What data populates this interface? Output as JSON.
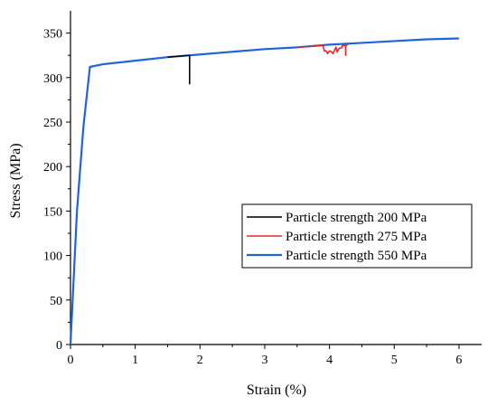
{
  "chart_data": {
    "type": "line",
    "xlabel": "Strain (%)",
    "ylabel": "Stress (MPa)",
    "xlim": [
      0,
      6.35
    ],
    "ylim": [
      0,
      375
    ],
    "xticks": [
      0,
      1,
      2,
      3,
      4,
      5,
      6
    ],
    "yticks": [
      0,
      50,
      100,
      150,
      200,
      250,
      300,
      350
    ],
    "legend_position": "lower-right",
    "grid": false,
    "series": [
      {
        "name": "Particle strength 200 MPa",
        "color": "#000000",
        "x": [
          0,
          0.1,
          0.2,
          0.3,
          0.5,
          1.0,
          1.5,
          1.84,
          1.84,
          1.84
        ],
        "y": [
          0,
          150,
          245,
          312,
          315,
          319,
          323,
          325,
          293,
          325
        ]
      },
      {
        "name": "Particle strength 275 MPa",
        "color": "#e8262a",
        "x": [
          0,
          0.1,
          0.2,
          0.3,
          0.5,
          1.0,
          1.5,
          2.0,
          2.5,
          3.0,
          3.5,
          3.9,
          3.92,
          3.95,
          3.97,
          4.0,
          4.03,
          4.05,
          4.08,
          4.1,
          4.12,
          4.15,
          4.18,
          4.2,
          4.22,
          4.25,
          4.25,
          4.25,
          4.28
        ],
        "y": [
          0,
          150,
          245,
          312,
          315,
          319,
          323,
          326,
          329,
          332,
          334,
          336,
          330,
          330,
          327,
          330,
          329,
          327,
          331,
          334,
          329,
          333,
          333,
          336,
          336,
          336,
          325,
          336,
          337
        ]
      },
      {
        "name": "Particle strength 550 MPa",
        "color": "#1f64d8",
        "x": [
          0,
          0.1,
          0.2,
          0.3,
          0.5,
          1.0,
          1.5,
          2.0,
          2.5,
          3.0,
          3.5,
          4.0,
          4.5,
          5.0,
          5.5,
          6.0
        ],
        "y": [
          0,
          150,
          245,
          312,
          315,
          319,
          323,
          326,
          329,
          332,
          334,
          337,
          339,
          341,
          343,
          344
        ]
      }
    ]
  }
}
